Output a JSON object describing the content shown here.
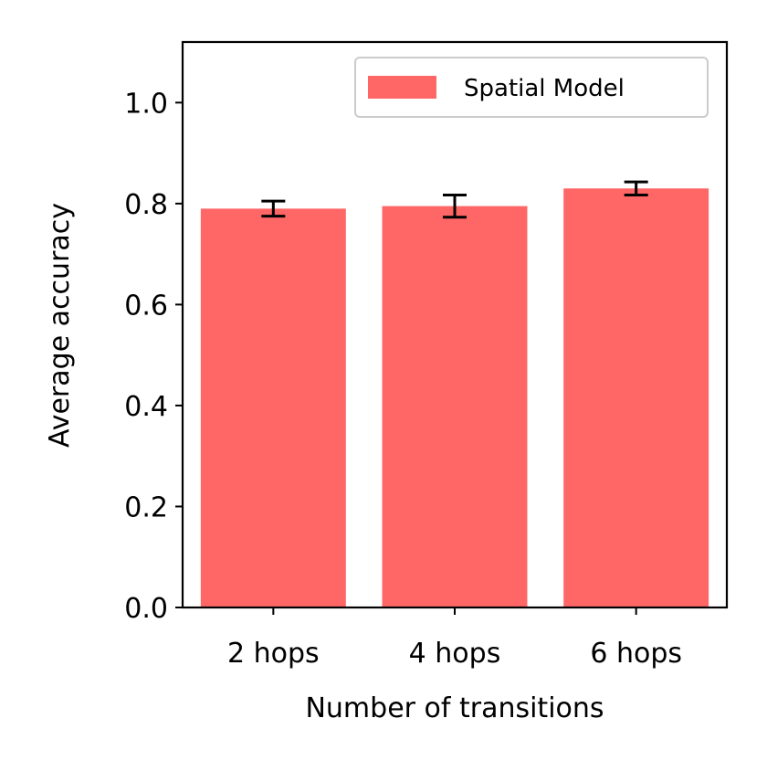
{
  "chart_data": {
    "type": "bar",
    "categories": [
      "2 hops",
      "4 hops",
      "6 hops"
    ],
    "series": [
      {
        "name": "Spatial Model",
        "values": [
          0.79,
          0.795,
          0.83
        ],
        "error": [
          0.015,
          0.022,
          0.013
        ],
        "color": "#ff6666"
      }
    ],
    "xlabel": "Number of transitions",
    "ylabel": "Average accuracy",
    "ylim": [
      0,
      1.12
    ],
    "yticks": [
      0.0,
      0.2,
      0.4,
      0.6,
      0.8,
      1.0
    ],
    "ytick_labels": [
      "0.0",
      "0.2",
      "0.4",
      "0.6",
      "0.8",
      "1.0"
    ],
    "grid": false,
    "legend": {
      "position": "top-right",
      "entries": [
        "Spatial Model"
      ]
    }
  }
}
